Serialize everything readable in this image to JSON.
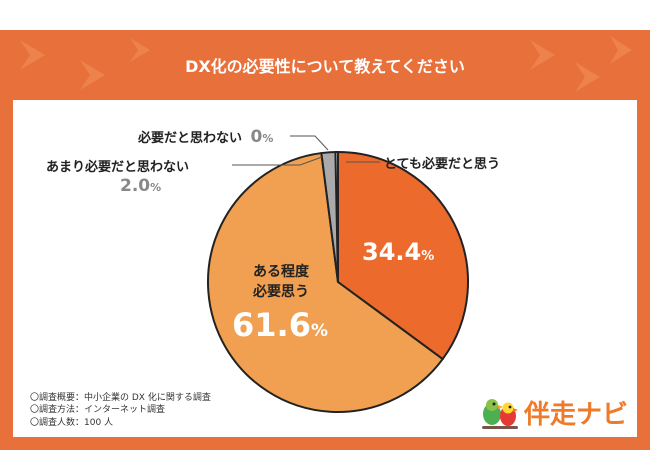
{
  "title": "DX化の必要性について教えてください",
  "colors": {
    "border": "#e8703a",
    "banner": "#e8703a",
    "slice_very": "#ec6a2c",
    "slice_somewhat": "#f0a050",
    "slice_not_much": "#aaaaaa",
    "slice_not": "#d8d8d8",
    "gray_text": "#888888"
  },
  "chart_data": {
    "type": "pie",
    "title": "DX化の必要性について教えてください",
    "labels": [
      "とても必要だと思う",
      "ある程度必要思う",
      "あまり必要だと思わない",
      "必要だと思わない"
    ],
    "values": [
      34.4,
      61.6,
      2.0,
      0
    ],
    "value_labels": [
      {
        "number": "34.4",
        "unit": "%"
      },
      {
        "number": "61.6",
        "unit": "%"
      },
      {
        "number": "2.0",
        "unit": "%"
      },
      {
        "number": "0",
        "unit": "%"
      }
    ],
    "legend": "none"
  },
  "labels": {
    "very_necessary": "とても必要だと思う",
    "somewhat_line1": "ある程度",
    "somewhat_line2": "必要思う",
    "not_much": "あまり必要だと思わない",
    "not_at_all": "必要だと思わない"
  },
  "footnotes": [
    "〇調査概要：中小企業の DX 化に関する調査",
    "〇調査方法：インターネット調査",
    "〇調査人数：100 人"
  ],
  "logo": {
    "text": "伴走ナビ",
    "icon": "parrots-logo-icon"
  }
}
